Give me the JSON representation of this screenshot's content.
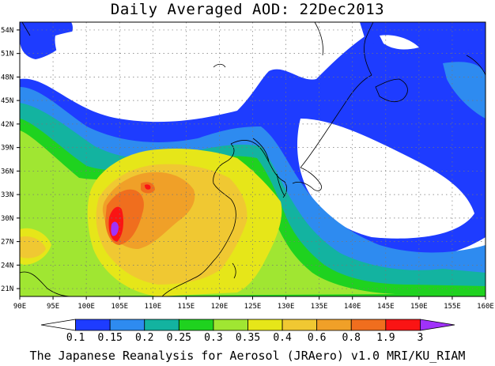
{
  "title": "Daily Averaged AOD: 22Dec2013",
  "footer": "The Japanese Reanalysis for Aerosol (JRAero) v1.0 MRI/KU_RIAM",
  "map": {
    "lat_ticks": [
      "54N",
      "51N",
      "48N",
      "45N",
      "42N",
      "39N",
      "36N",
      "33N",
      "30N",
      "27N",
      "24N",
      "21N"
    ],
    "lon_ticks": [
      "90E",
      "95E",
      "100E",
      "105E",
      "110E",
      "115E",
      "120E",
      "125E",
      "130E",
      "135E",
      "140E",
      "145E",
      "150E",
      "155E",
      "160E"
    ],
    "lon_range": [
      90,
      160
    ],
    "lat_range": [
      20,
      55
    ]
  },
  "colorbar": {
    "labels": [
      "0.1",
      "0.15",
      "0.2",
      "0.25",
      "0.3",
      "0.35",
      "0.4",
      "0.6",
      "0.8",
      "1.9",
      "3"
    ],
    "colors": [
      "#ffffff",
      "#1e3cff",
      "#2e8bf0",
      "#13b3a0",
      "#1fd21f",
      "#a0e632",
      "#e6e619",
      "#f0c832",
      "#f0a028",
      "#f06e1e",
      "#fa1414",
      "#a032fa"
    ]
  }
}
